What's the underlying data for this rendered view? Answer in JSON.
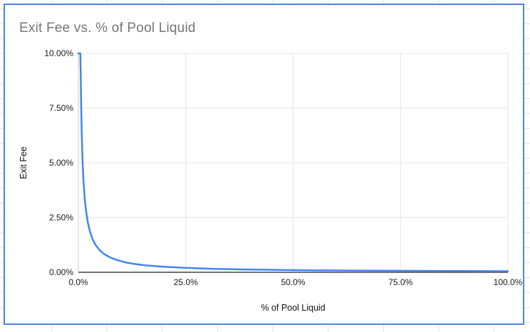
{
  "colors": {
    "chart_border": "#4a86e8",
    "title_text": "#757575",
    "series_line": "#4285f4",
    "gridline": "#e6e6e6",
    "zero_gridline": "#cccccc",
    "axis_line": "#424242",
    "tick_label": "#1a1a1a",
    "axis_title": "#111111",
    "spreadsheet_gridline": "#e2e2e2",
    "chart_background": "#ffffff"
  },
  "chart_data": {
    "type": "line",
    "title": "Exit Fee vs. % of Pool Liquid",
    "xlabel": "% of Pool Liquid",
    "ylabel": "Exit Fee",
    "xlim": [
      0,
      100
    ],
    "ylim": [
      0,
      10
    ],
    "grid": true,
    "legend": "none",
    "x_ticks": [
      {
        "value": 0,
        "label": "0.0%"
      },
      {
        "value": 25,
        "label": "25.0%"
      },
      {
        "value": 50,
        "label": "50.0%"
      },
      {
        "value": 75,
        "label": "75.0%"
      },
      {
        "value": 100,
        "label": "100.0%"
      }
    ],
    "y_ticks": [
      {
        "value": 0,
        "label": "0.00%"
      },
      {
        "value": 2.5,
        "label": "2.50%"
      },
      {
        "value": 5,
        "label": "5.00%"
      },
      {
        "value": 7.5,
        "label": "7.50%"
      },
      {
        "value": 10,
        "label": "10.00%"
      }
    ],
    "series": [
      {
        "name": "Exit Fee",
        "points": [
          [
            0,
            10
          ],
          [
            0.45,
            10
          ],
          [
            0.55,
            9.09
          ],
          [
            0.65,
            7.69
          ],
          [
            0.8,
            6.25
          ],
          [
            1,
            5
          ],
          [
            1.2,
            4.17
          ],
          [
            1.5,
            3.33
          ],
          [
            1.8,
            2.78
          ],
          [
            2.2,
            2.27
          ],
          [
            2.7,
            1.85
          ],
          [
            3.3,
            1.52
          ],
          [
            4,
            1.25
          ],
          [
            5,
            1
          ],
          [
            6,
            0.83
          ],
          [
            7.5,
            0.67
          ],
          [
            9,
            0.56
          ],
          [
            11,
            0.45
          ],
          [
            13,
            0.38
          ],
          [
            16,
            0.31
          ],
          [
            20,
            0.25
          ],
          [
            25,
            0.2
          ],
          [
            31,
            0.16
          ],
          [
            38,
            0.13
          ],
          [
            46,
            0.11
          ],
          [
            55,
            0.09
          ],
          [
            65,
            0.077
          ],
          [
            78,
            0.064
          ],
          [
            90,
            0.056
          ],
          [
            100,
            0.05
          ]
        ]
      }
    ]
  }
}
